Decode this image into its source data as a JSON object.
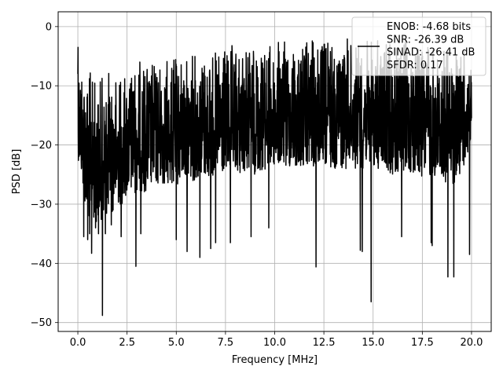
{
  "chart_data": {
    "type": "line",
    "title": "",
    "xlabel": "Frequency [MHz]",
    "ylabel": "PSD [dB]",
    "xlim": [
      -1.0,
      21.0
    ],
    "ylim": [
      -51.5,
      2.5
    ],
    "x_ticks": [
      0.0,
      2.5,
      5.0,
      7.5,
      10.0,
      12.5,
      15.0,
      17.5,
      20.0
    ],
    "x_tick_labels": [
      "0.0",
      "2.5",
      "5.0",
      "7.5",
      "10.0",
      "12.5",
      "15.0",
      "17.5",
      "20.0"
    ],
    "y_ticks": [
      0,
      -10,
      -20,
      -30,
      -40,
      -50
    ],
    "y_tick_labels": [
      "0",
      "−10",
      "−20",
      "−30",
      "−40",
      "−50"
    ],
    "grid": true,
    "legend_position": "top-right",
    "series": [
      {
        "name": "ENOB: -4.68 bits\nSNR: -26.39 dB\nSINAD: -26.41 dB\nSFDR: 0.17",
        "color": "#000000",
        "x_range": [
          0.0,
          20.0
        ],
        "envelope_upper": [
          [
            0.0,
            -3.5
          ],
          [
            0.5,
            -6.5
          ],
          [
            1.0,
            -9.0
          ],
          [
            1.5,
            -7.0
          ],
          [
            2.0,
            -7.5
          ],
          [
            2.5,
            -7.0
          ],
          [
            3.0,
            -5.5
          ],
          [
            3.5,
            -5.5
          ],
          [
            4.0,
            -5.5
          ],
          [
            5.0,
            -5.0
          ],
          [
            6.0,
            -4.0
          ],
          [
            7.0,
            -3.5
          ],
          [
            8.0,
            -3.0
          ],
          [
            9.0,
            -3.0
          ],
          [
            10.0,
            -2.5
          ],
          [
            11.0,
            -2.0
          ],
          [
            12.0,
            -2.0
          ],
          [
            13.0,
            -1.5
          ],
          [
            14.0,
            -2.0
          ],
          [
            15.0,
            -2.0
          ],
          [
            16.0,
            -2.0
          ],
          [
            17.0,
            -2.5
          ],
          [
            18.0,
            -2.5
          ],
          [
            19.0,
            -3.0
          ],
          [
            20.0,
            -4.0
          ]
        ],
        "envelope_lower": [
          [
            0.0,
            -22.0
          ],
          [
            0.5,
            -33.0
          ],
          [
            1.0,
            -33.0
          ],
          [
            1.5,
            -32.0
          ],
          [
            2.0,
            -31.0
          ],
          [
            2.5,
            -29.0
          ],
          [
            3.0,
            -28.0
          ],
          [
            3.5,
            -28.0
          ],
          [
            4.0,
            -27.0
          ],
          [
            5.0,
            -27.0
          ],
          [
            6.0,
            -26.0
          ],
          [
            7.0,
            -25.5
          ],
          [
            8.0,
            -25.0
          ],
          [
            9.0,
            -25.0
          ],
          [
            10.0,
            -24.0
          ],
          [
            11.0,
            -24.0
          ],
          [
            12.0,
            -24.0
          ],
          [
            13.0,
            -24.0
          ],
          [
            14.0,
            -24.0
          ],
          [
            15.0,
            -24.0
          ],
          [
            16.0,
            -25.0
          ],
          [
            17.0,
            -25.0
          ],
          [
            18.0,
            -26.0
          ],
          [
            19.0,
            -27.0
          ],
          [
            20.0,
            -22.0
          ]
        ],
        "deep_nulls": [
          [
            0.3,
            -35.5
          ],
          [
            0.5,
            -36.0
          ],
          [
            0.6,
            -35.0
          ],
          [
            0.7,
            -38.3
          ],
          [
            0.9,
            -34.0
          ],
          [
            1.05,
            -35.0
          ],
          [
            1.25,
            -48.8
          ],
          [
            1.4,
            -35.0
          ],
          [
            1.7,
            -33.5
          ],
          [
            2.2,
            -35.5
          ],
          [
            2.95,
            -40.5
          ],
          [
            3.2,
            -35.0
          ],
          [
            5.0,
            -36.0
          ],
          [
            5.55,
            -38.0
          ],
          [
            6.2,
            -39.0
          ],
          [
            6.75,
            -37.5
          ],
          [
            7.0,
            -36.5
          ],
          [
            7.75,
            -36.5
          ],
          [
            8.8,
            -35.5
          ],
          [
            9.7,
            -34.0
          ],
          [
            12.1,
            -40.6
          ],
          [
            14.35,
            -37.8
          ],
          [
            14.45,
            -38.0
          ],
          [
            14.9,
            -46.5
          ],
          [
            16.45,
            -35.5
          ],
          [
            17.95,
            -36.5
          ],
          [
            18.0,
            -37.0
          ],
          [
            18.8,
            -42.3
          ],
          [
            19.1,
            -42.3
          ],
          [
            19.9,
            -38.5
          ]
        ]
      }
    ]
  }
}
